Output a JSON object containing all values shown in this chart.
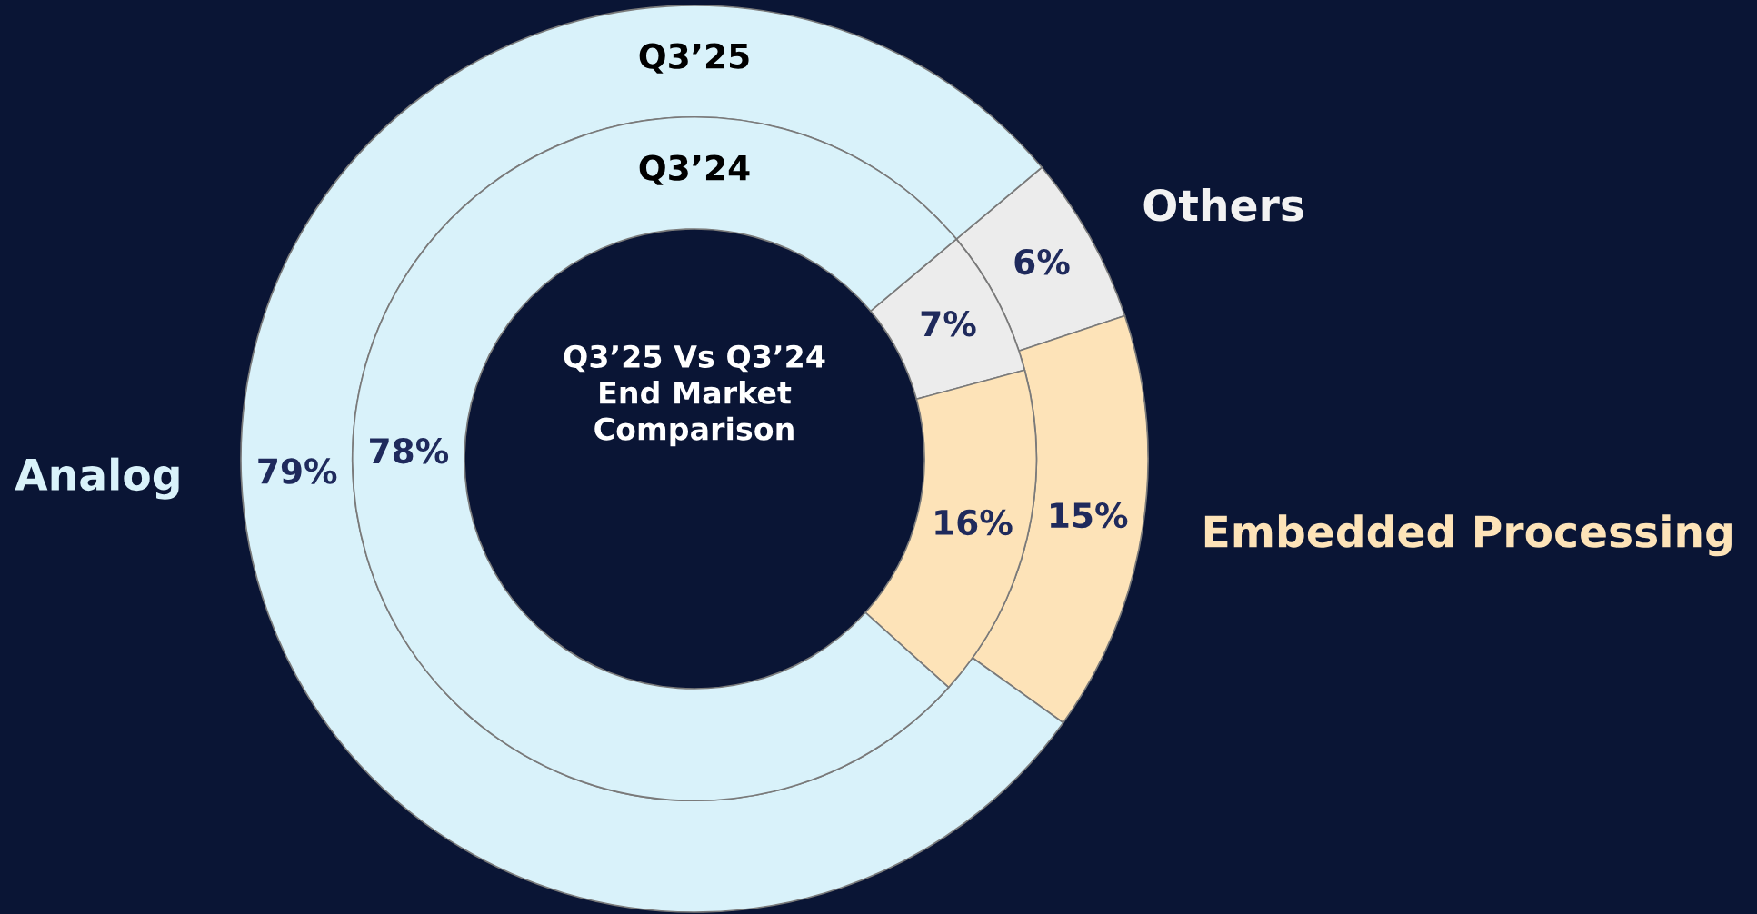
{
  "chart_data": {
    "type": "donut",
    "title": "Q3’25 Vs Q3’24\nEnd Market\nComparison",
    "categories": [
      "Others",
      "Embedded Processing",
      "Analog"
    ],
    "colors": [
      "#ececec",
      "#fde3b8",
      "#d9f2fa"
    ],
    "series": [
      {
        "name": "Q3’25",
        "values": [
          6,
          15,
          79
        ],
        "value_labels": [
          "6%",
          "15%",
          "79%"
        ]
      },
      {
        "name": "Q3’24",
        "values": [
          7,
          16,
          78
        ],
        "value_labels": [
          "7%",
          "16%",
          "78%"
        ]
      }
    ]
  }
}
